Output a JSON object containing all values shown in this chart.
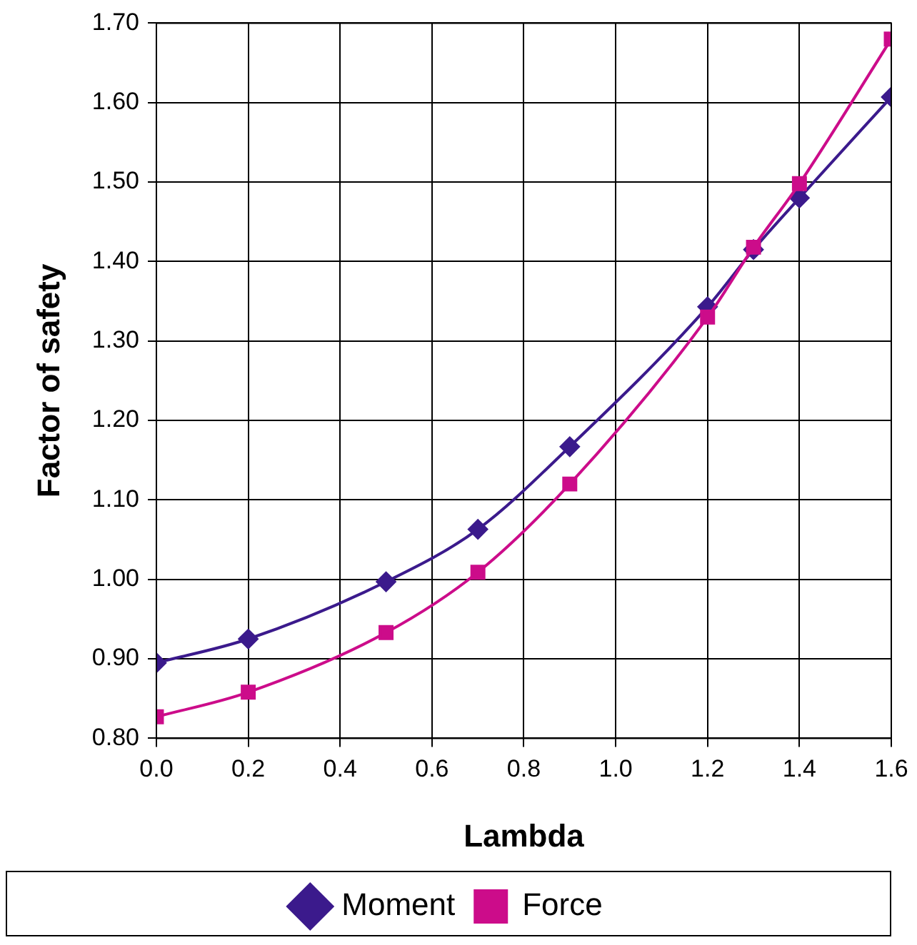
{
  "chart_data": {
    "type": "line",
    "xlabel": "Lambda",
    "ylabel": "Factor of safety",
    "x": [
      0,
      0.2,
      0.5,
      0.7,
      0.9,
      1.2,
      1.3,
      1.4,
      1.6
    ],
    "series": [
      {
        "name": "Moment",
        "color": "#3b1a8c",
        "marker": "diamond",
        "values": [
          0.895,
          0.925,
          0.997,
          1.063,
          1.167,
          1.343,
          1.415,
          1.48,
          1.607
        ]
      },
      {
        "name": "Force",
        "color": "#cc0c8a",
        "marker": "square",
        "values": [
          0.827,
          0.858,
          0.933,
          1.009,
          1.12,
          1.33,
          1.418,
          1.498,
          1.68
        ]
      }
    ],
    "xlim": [
      0,
      1.6
    ],
    "xticks": [
      {
        "value": 0,
        "label": "0.0"
      },
      {
        "value": 0.2,
        "label": "0.2"
      },
      {
        "value": 0.4,
        "label": "0.4"
      },
      {
        "value": 0.6,
        "label": "0.6"
      },
      {
        "value": 0.8,
        "label": "0.8"
      },
      {
        "value": 1,
        "label": "1.0"
      },
      {
        "value": 1.2,
        "label": "1.2"
      },
      {
        "value": 1.4,
        "label": "1.4"
      },
      {
        "value": 1.6,
        "label": "1.6"
      }
    ],
    "ylim": [
      0.8,
      1.7
    ],
    "yticks": [
      {
        "value": 0.8,
        "label": "0.80"
      },
      {
        "value": 0.9,
        "label": "0.90"
      },
      {
        "value": 1,
        "label": "1.00"
      },
      {
        "value": 1.1,
        "label": "1.10"
      },
      {
        "value": 1.2,
        "label": "1.20"
      },
      {
        "value": 1.3,
        "label": "1.30"
      },
      {
        "value": 1.4,
        "label": "1.40"
      },
      {
        "value": 1.5,
        "label": "1.50"
      },
      {
        "value": 1.6,
        "label": "1.60"
      },
      {
        "value": 1.7,
        "label": "1.70"
      }
    ],
    "grid": true,
    "legend": "bottom",
    "line_style": "solid"
  }
}
